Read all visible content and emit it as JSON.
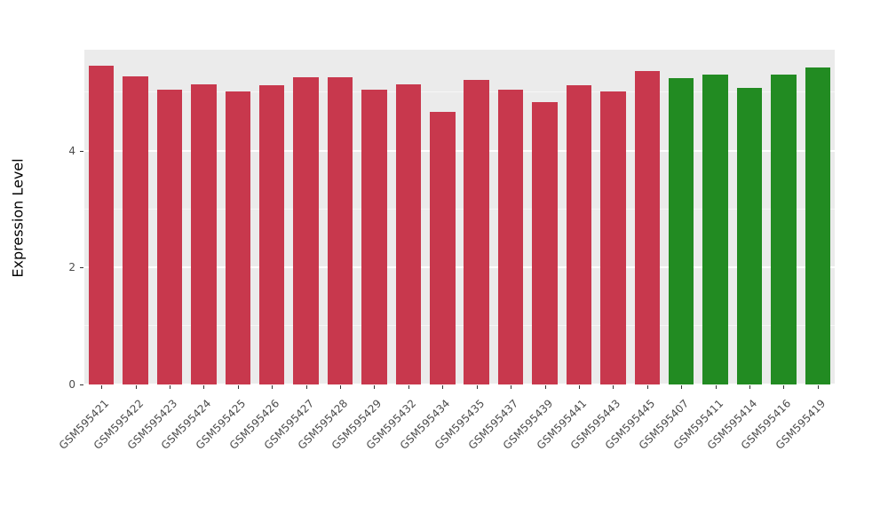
{
  "chart_data": {
    "type": "bar",
    "title": "",
    "xlabel": "",
    "ylabel": "Expression Level",
    "ylim": [
      0,
      5.73
    ],
    "yticks_major": [
      0,
      2,
      4
    ],
    "yticks_minor": [
      1,
      3,
      5
    ],
    "grid": "on",
    "legend": "none",
    "panel_background": "#EBEBEB",
    "gridline_color": "#ffffff",
    "categories": [
      "GSM595421",
      "GSM595422",
      "GSM595423",
      "GSM595424",
      "GSM595425",
      "GSM595426",
      "GSM595427",
      "GSM595428",
      "GSM595429",
      "GSM595432",
      "GSM595434",
      "GSM595435",
      "GSM595437",
      "GSM595439",
      "GSM595441",
      "GSM595443",
      "GSM595445",
      "GSM595407",
      "GSM595411",
      "GSM595414",
      "GSM595416",
      "GSM595419"
    ],
    "values": [
      5.46,
      5.28,
      5.05,
      5.14,
      5.02,
      5.12,
      5.26,
      5.26,
      5.05,
      5.14,
      4.67,
      5.22,
      5.05,
      4.84,
      5.12,
      5.02,
      5.37,
      5.25,
      5.31,
      5.08,
      5.31,
      5.43
    ],
    "groups": [
      "red",
      "red",
      "red",
      "red",
      "red",
      "red",
      "red",
      "red",
      "red",
      "red",
      "red",
      "red",
      "red",
      "red",
      "red",
      "red",
      "red",
      "green",
      "green",
      "green",
      "green",
      "green"
    ],
    "colors": {
      "red": "#C8384D",
      "green": "#228B22"
    }
  }
}
